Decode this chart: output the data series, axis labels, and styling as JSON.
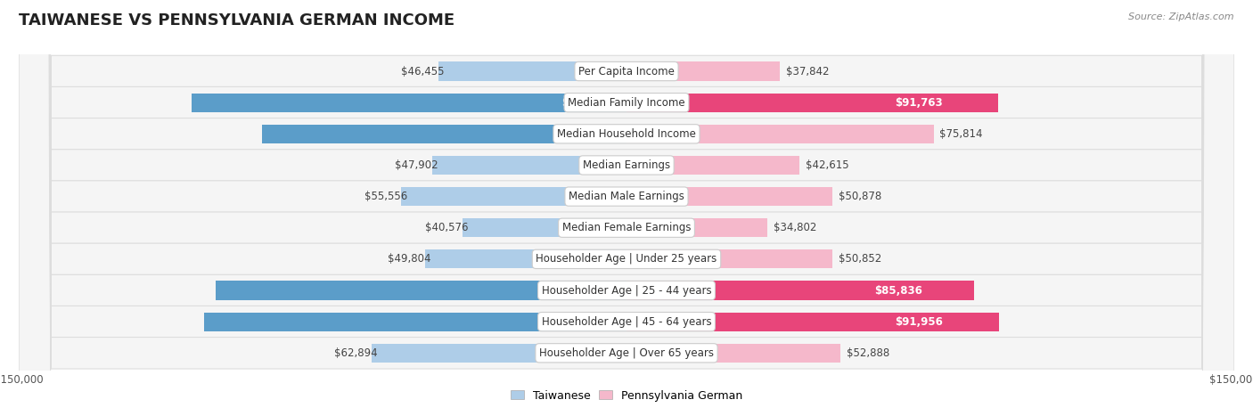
{
  "title": "TAIWANESE VS PENNSYLVANIA GERMAN INCOME",
  "source": "Source: ZipAtlas.com",
  "categories": [
    "Per Capita Income",
    "Median Family Income",
    "Median Household Income",
    "Median Earnings",
    "Median Male Earnings",
    "Median Female Earnings",
    "Householder Age | Under 25 years",
    "Householder Age | 25 - 44 years",
    "Householder Age | 45 - 64 years",
    "Householder Age | Over 65 years"
  ],
  "taiwanese_values": [
    46455,
    107295,
    89900,
    47902,
    55556,
    40576,
    49804,
    101492,
    104180,
    62894
  ],
  "pennsylvania_values": [
    37842,
    91763,
    75814,
    42615,
    50878,
    34802,
    50852,
    85836,
    91956,
    52888
  ],
  "taiwanese_color_light": "#aecde8",
  "taiwanese_color_dark": "#5b9dc9",
  "pennsylvania_color_light": "#f5b8cb",
  "pennsylvania_color_dark": "#e8457a",
  "tw_dark_threshold": 80000,
  "pa_dark_threshold": 80000,
  "bar_height": 0.6,
  "max_value": 150000,
  "background_color": "#ffffff",
  "row_bg_even": "#f0f0f0",
  "row_bg_odd": "#fafafa",
  "label_fontsize": 8.5,
  "title_fontsize": 13,
  "legend_fontsize": 9,
  "source_fontsize": 8
}
